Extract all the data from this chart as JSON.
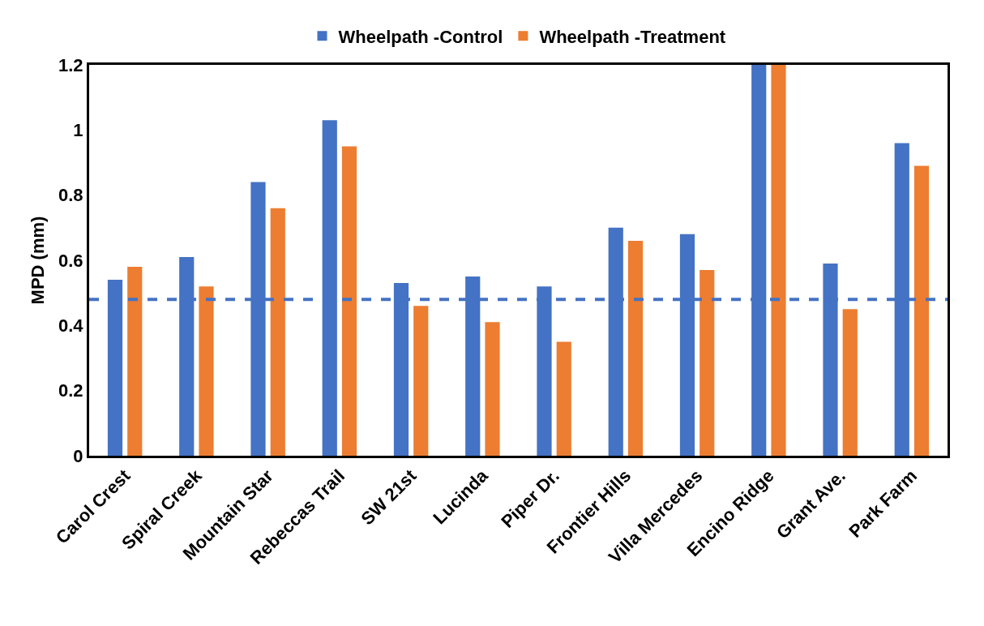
{
  "chart_data": {
    "type": "bar",
    "ylabel": "MPD (mm)",
    "categories": [
      "Carol Crest",
      "Spiral Creek",
      "Mountain Star",
      "Rebeccas Trail",
      "SW 21st",
      "Lucinda",
      "Piper Dr.",
      "Frontier Hills",
      "Villa Mercedes",
      "Encino Ridge",
      "Grant Ave.",
      "Park Farm"
    ],
    "series": [
      {
        "name": "Wheelpath -Control",
        "color": "#4472c4",
        "values": [
          0.54,
          0.61,
          0.84,
          1.03,
          0.53,
          0.55,
          0.52,
          0.7,
          0.68,
          1.2,
          0.59,
          0.96
        ]
      },
      {
        "name": "Wheelpath -Treatment",
        "color": "#ed7d31",
        "values": [
          0.58,
          0.52,
          0.76,
          0.95,
          0.46,
          0.41,
          0.35,
          0.66,
          0.57,
          1.2,
          0.45,
          0.89
        ]
      }
    ],
    "ylim": [
      0,
      1.2
    ],
    "yticks": [
      0,
      0.2,
      0.4,
      0.6,
      0.8,
      1,
      1.2
    ],
    "ref_lines": [
      {
        "axis": "y",
        "value": 0.48,
        "color": "#4472c4",
        "line_style": "dashed"
      }
    ],
    "grid": false,
    "legend": "top"
  }
}
